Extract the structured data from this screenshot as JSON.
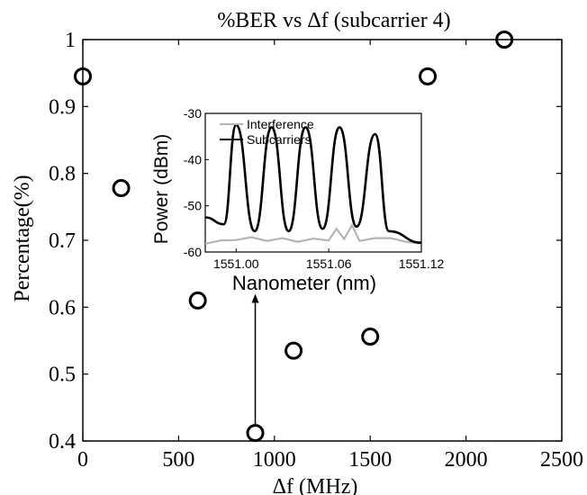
{
  "chart_data": [
    {
      "type": "scatter",
      "title": "%BER vs Δf (subcarrier 4)",
      "xlabel": "Δf (MHz)",
      "ylabel": "Percentage(%)",
      "xlim": [
        0,
        2500
      ],
      "ylim": [
        0.4,
        1.0
      ],
      "xticks": [
        "0",
        "500",
        "1000",
        "1500",
        "2000",
        "2500"
      ],
      "yticks": [
        "0.4",
        "0.5",
        "0.6",
        "0.7",
        "0.8",
        "0.9",
        "1"
      ],
      "marker": "open-circle",
      "series": [
        {
          "x": [
            0,
            200,
            600,
            900,
            1100,
            1500,
            1800,
            2200
          ],
          "y": [
            0.945,
            0.778,
            0.61,
            0.412,
            0.535,
            0.556,
            0.945,
            1.0
          ]
        }
      ],
      "annotations": [
        {
          "type": "arrow",
          "x": 900,
          "y_from": 0.412,
          "y_to": 0.62,
          "target": "inset"
        }
      ],
      "grid": false
    },
    {
      "type": "line",
      "role": "inset",
      "xlabel": "Nanometer (nm)",
      "ylabel": "Power (dBm)",
      "xlim": [
        1550.98,
        1551.12
      ],
      "ylim": [
        -60,
        -30
      ],
      "xticks": [
        "1551.00",
        "1551.06",
        "1551.12"
      ],
      "yticks": [
        "-60",
        "-50",
        "-40",
        "-30"
      ],
      "legend": "top-left",
      "series": [
        {
          "name": "Interference",
          "color": "#b4b4b4",
          "x": [
            1550.98,
            1550.99,
            1551.0,
            1551.01,
            1551.02,
            1551.03,
            1551.04,
            1551.05,
            1551.06,
            1551.065,
            1551.07,
            1551.075,
            1551.08,
            1551.09,
            1551.1,
            1551.11,
            1551.12
          ],
          "y": [
            -58.2,
            -57.5,
            -57.4,
            -56.8,
            -57.6,
            -57.0,
            -57.8,
            -57.1,
            -57.5,
            -55.0,
            -57.2,
            -54.2,
            -57.6,
            -57.0,
            -57.0,
            -57.8,
            -58.2
          ]
        },
        {
          "name": "Subcarriers",
          "color": "#000000",
          "peaks_x": [
            1551.0,
            1551.023,
            1551.045,
            1551.067,
            1551.09
          ],
          "peaks_y": [
            -32.5,
            -33.0,
            -33.0,
            -33.0,
            -34.5
          ],
          "troughs_x": [
            1551.012,
            1551.034,
            1551.056,
            1551.078
          ],
          "troughs_y": [
            -55.5,
            -55.5,
            -55.0,
            -54.5
          ],
          "x_start": 1550.98,
          "y_start": -52.5,
          "x_end": 1551.12,
          "y_end": -58.0
        }
      ]
    }
  ]
}
